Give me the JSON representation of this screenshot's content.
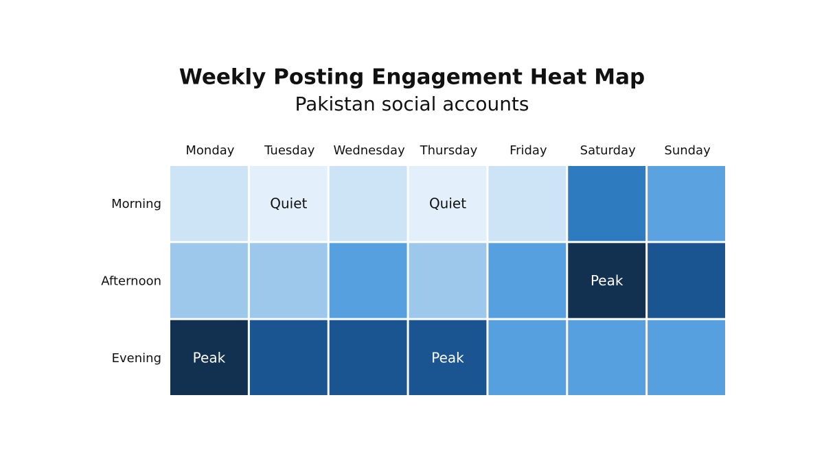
{
  "chart_data": {
    "type": "heatmap",
    "title": "Weekly Posting Engagement Heat Map",
    "subtitle": "Pakistan social accounts",
    "columns": [
      "Monday",
      "Tuesday",
      "Wednesday",
      "Thursday",
      "Friday",
      "Saturday",
      "Sunday"
    ],
    "rows": [
      "Morning",
      "Afternoon",
      "Evening"
    ],
    "cells": [
      [
        {
          "color": "#cde3f6",
          "label": null
        },
        {
          "color": "#e3effb",
          "label": "Quiet"
        },
        {
          "color": "#cde3f6",
          "label": null
        },
        {
          "color": "#e3effb",
          "label": "Quiet"
        },
        {
          "color": "#cde3f6",
          "label": null
        },
        {
          "color": "#2f7bc0",
          "label": null
        },
        {
          "color": "#5aa2e0",
          "label": null
        }
      ],
      [
        {
          "color": "#9dc8ec",
          "label": null
        },
        {
          "color": "#9dc8ec",
          "label": null
        },
        {
          "color": "#56a0e0",
          "label": null
        },
        {
          "color": "#9dc8ec",
          "label": null
        },
        {
          "color": "#56a0e0",
          "label": null
        },
        {
          "color": "#12304f",
          "label": "Peak"
        },
        {
          "color": "#1a5592",
          "label": null
        }
      ],
      [
        {
          "color": "#12304f",
          "label": "Peak"
        },
        {
          "color": "#1a5592",
          "label": null
        },
        {
          "color": "#1a5592",
          "label": null
        },
        {
          "color": "#1a5592",
          "label": "Peak"
        },
        {
          "color": "#56a0e0",
          "label": null
        },
        {
          "color": "#56a0e0",
          "label": null
        },
        {
          "color": "#56a0e0",
          "label": null
        }
      ]
    ]
  }
}
